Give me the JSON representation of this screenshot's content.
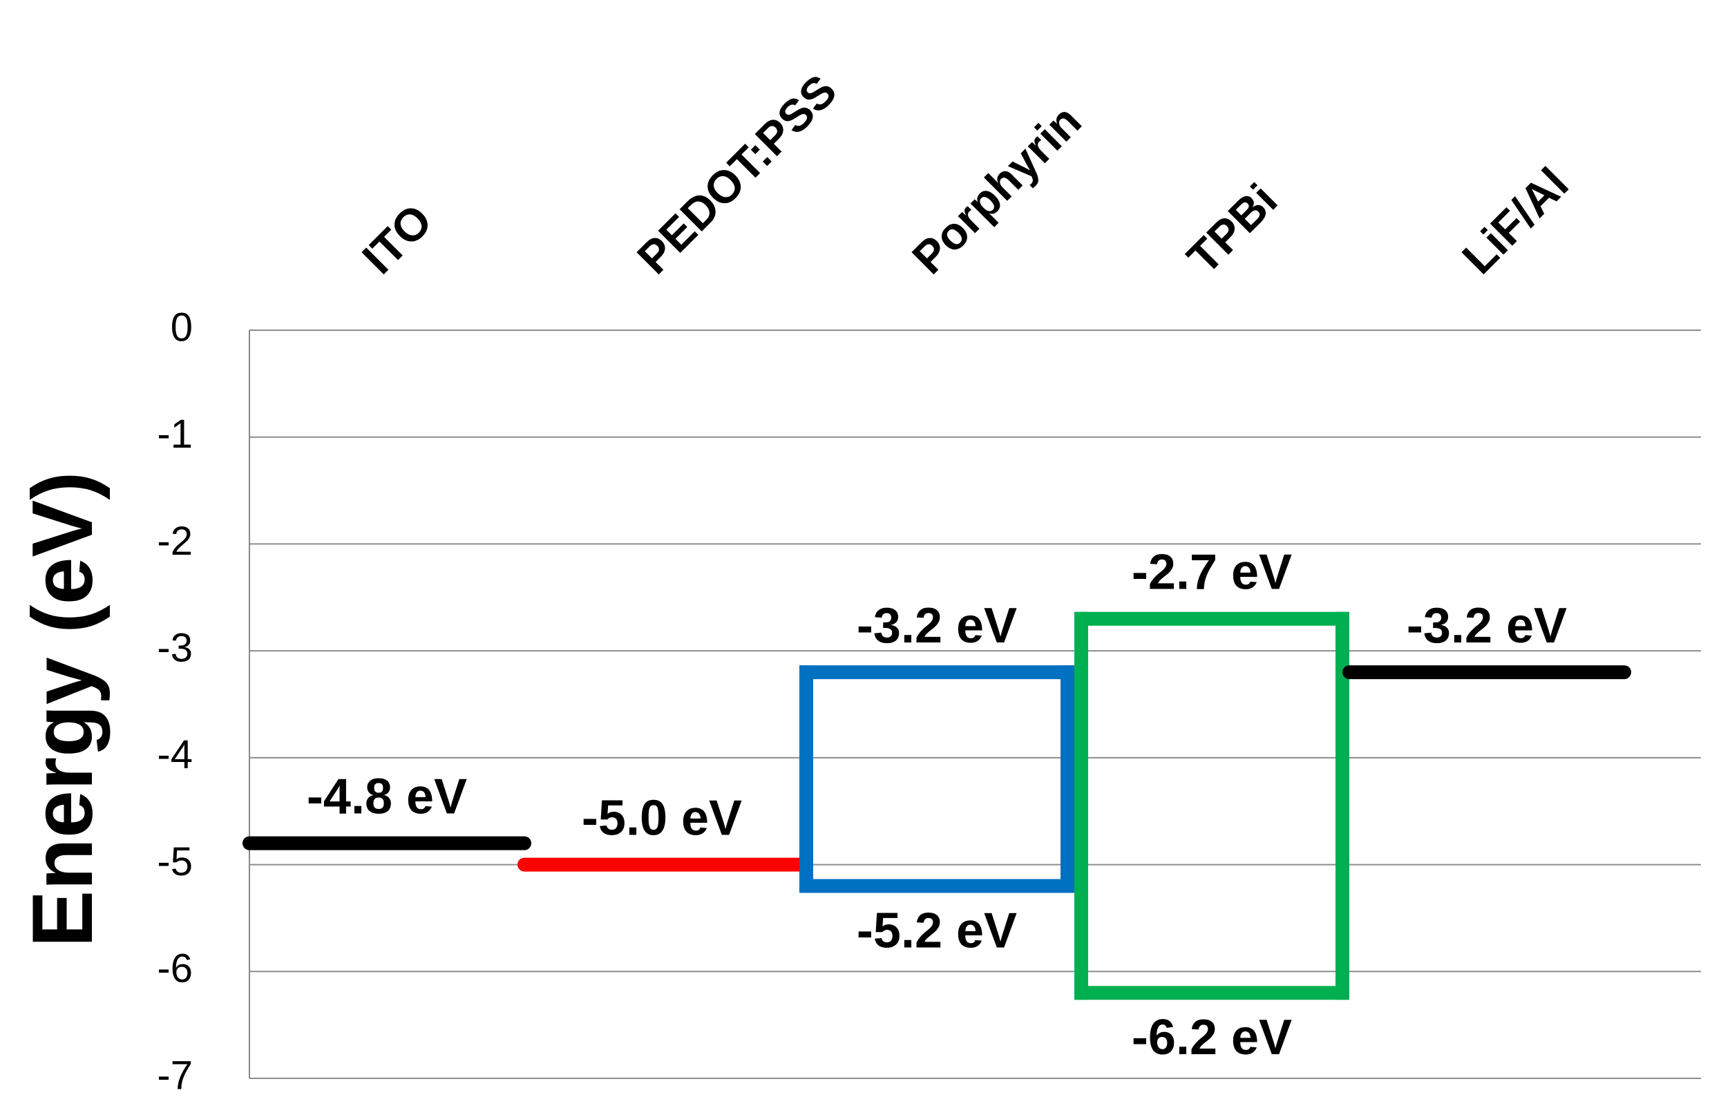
{
  "chart_data": {
    "type": "energy-level",
    "y_label": "Energy (eV)",
    "categories": [
      "ITO",
      "PEDOT:PSS",
      "Porphyrin",
      "TPBi",
      "LiF/Al"
    ],
    "colors": [
      "#000000",
      "#ff0000",
      "#0070c0",
      "#00b050",
      "#000000"
    ],
    "values": [
      -4.8,
      -5.0,
      -3.2,
      -2.7,
      -3.2
    ],
    "value_labels": [
      "-4.8 eV",
      "-5.0 eV",
      "-3.2 eV",
      "-2.7 eV",
      "-3.2 eV"
    ],
    "lower_values": [
      null,
      null,
      -5.2,
      -6.2,
      null
    ],
    "lower_value_labels": [
      null,
      null,
      "-5.2 eV",
      "-6.2 eV",
      null
    ],
    "ylim": [
      -7,
      0
    ],
    "yticks": [
      0,
      -1,
      -2,
      -3,
      -4,
      -5,
      -6,
      -7
    ],
    "grid": true
  }
}
